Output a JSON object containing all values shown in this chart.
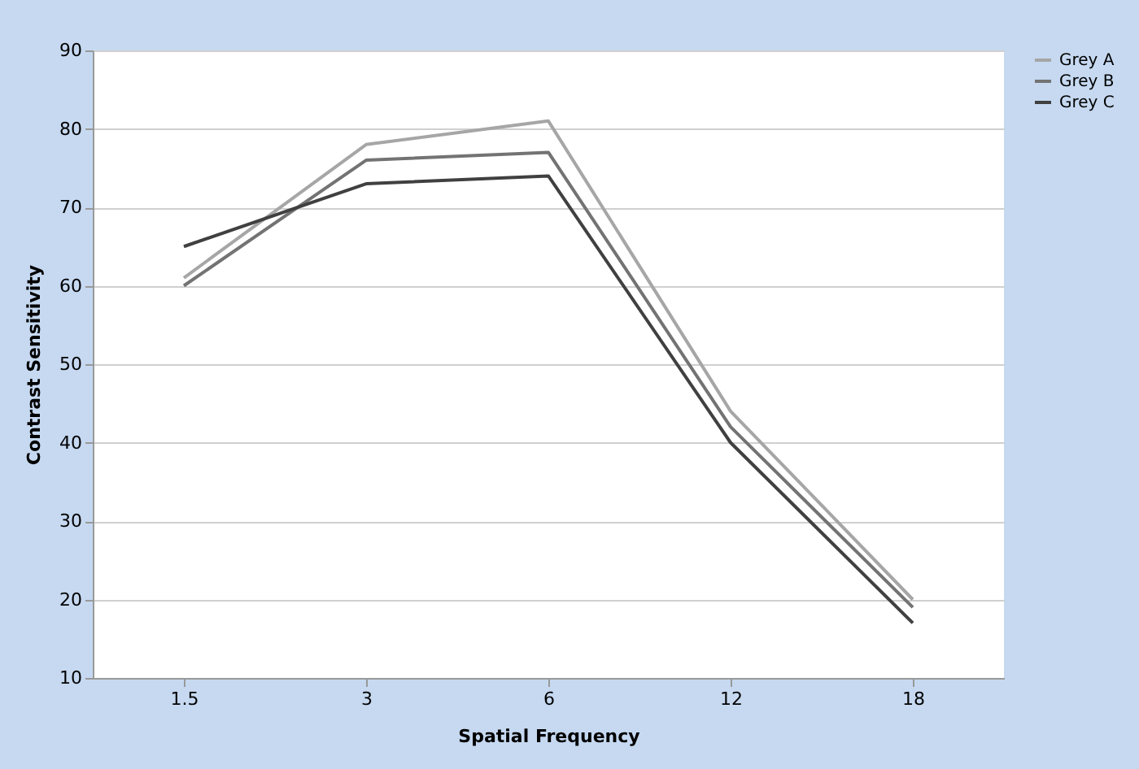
{
  "chart_data": {
    "type": "line",
    "xlabel": "Spatial Frequency",
    "ylabel": "Contrast Sensitivity",
    "categories": [
      "1.5",
      "3",
      "6",
      "12",
      "18"
    ],
    "series": [
      {
        "name": "Grey A",
        "color": "#a6a6a6",
        "values": [
          61,
          78,
          81,
          44,
          20
        ]
      },
      {
        "name": "Grey B",
        "color": "#737373",
        "values": [
          60,
          76,
          77,
          42,
          19
        ]
      },
      {
        "name": "Grey C",
        "color": "#404040",
        "values": [
          65,
          73,
          74,
          40,
          17
        ]
      }
    ],
    "ylim": [
      10,
      90
    ],
    "yticks": [
      10,
      20,
      30,
      40,
      50,
      60,
      70,
      80,
      90
    ],
    "grid": "y",
    "legend": "right",
    "marker": "none",
    "line_style": "solid"
  }
}
